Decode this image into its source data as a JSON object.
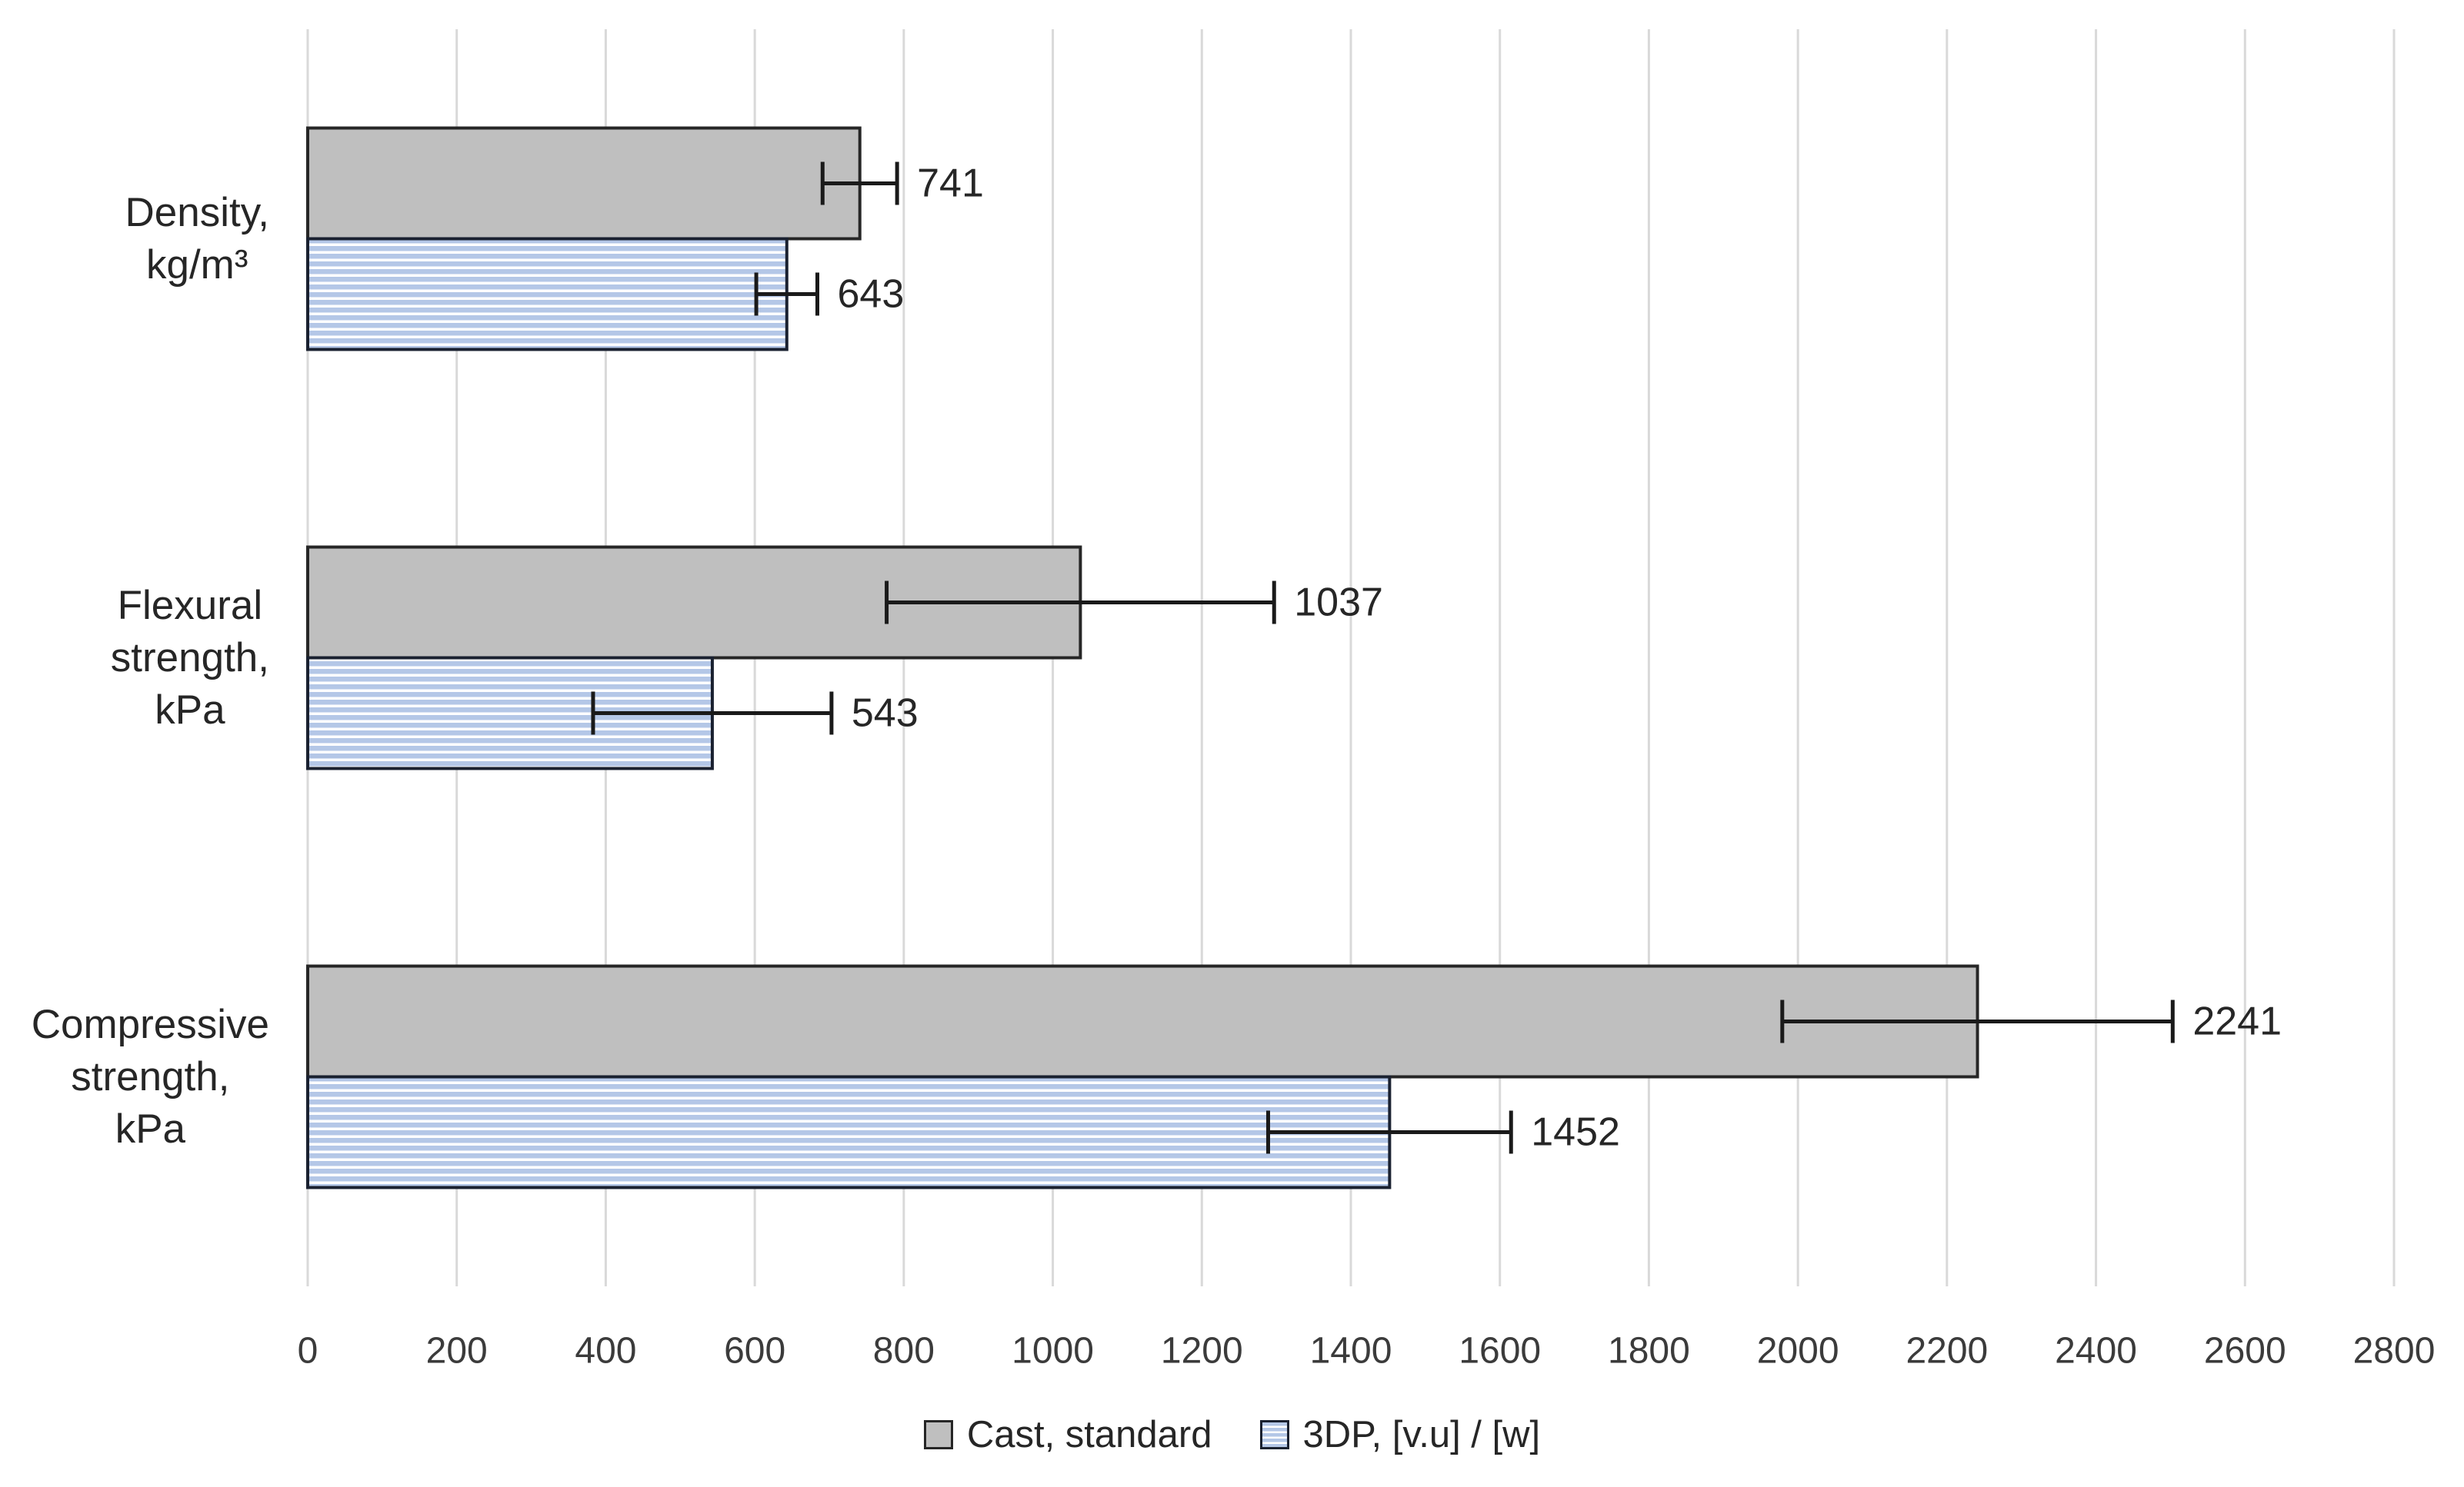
{
  "chart_data": {
    "type": "bar",
    "orientation": "horizontal",
    "title": "",
    "xlabel": "",
    "ylabel": "",
    "categories": [
      {
        "label": "Density, kg/m³",
        "lines": [
          "Density,",
          "kg/m³"
        ]
      },
      {
        "label": "Flexural strength, kPa",
        "lines": [
          "Flexural",
          "strength,",
          "kPa"
        ]
      },
      {
        "label": "Compressive strength, kPa",
        "lines": [
          "Compressive",
          "strength,",
          "kPa"
        ]
      }
    ],
    "series": [
      {
        "name": "Cast, standard",
        "pattern": "solid",
        "values": [
          741,
          1037,
          2241
        ],
        "errors": [
          50,
          260,
          262
        ]
      },
      {
        "name": "3DP, [v.u] / [w]",
        "pattern": "horizontal-stripes",
        "values": [
          643,
          543,
          1452
        ],
        "errors": [
          41,
          160,
          163
        ]
      }
    ],
    "value_labels": [
      "741",
      "643",
      "1037",
      "543",
      "2241",
      "1452"
    ],
    "xlim": [
      0,
      2800
    ],
    "xtick_step": 200,
    "xtick_labels": [
      "0",
      "200",
      "400",
      "600",
      "800",
      "1000",
      "1200",
      "1400",
      "1600",
      "1800",
      "2000",
      "2200",
      "2400",
      "2600",
      "2800"
    ],
    "grid": "vertical-only",
    "legend_position": "bottom"
  },
  "legend": {
    "items": [
      {
        "label": "Cast, standard",
        "swatch": "gray-solid"
      },
      {
        "label": "3DP, [v.u] / [w]",
        "swatch": "blue-striped"
      }
    ]
  },
  "colors": {
    "background": "#FFFFFF",
    "gridline": "#D9D9D9",
    "text": "#262626",
    "tick_text": "#3B3B3B",
    "error_bar": "#1A1A1A",
    "gray_fill": "#BFBFBF",
    "gray_stroke": "#262626",
    "blue_fill": "#B4C7E7",
    "blue_stroke": "#1A2130",
    "stripe": "#FFFFFF"
  }
}
